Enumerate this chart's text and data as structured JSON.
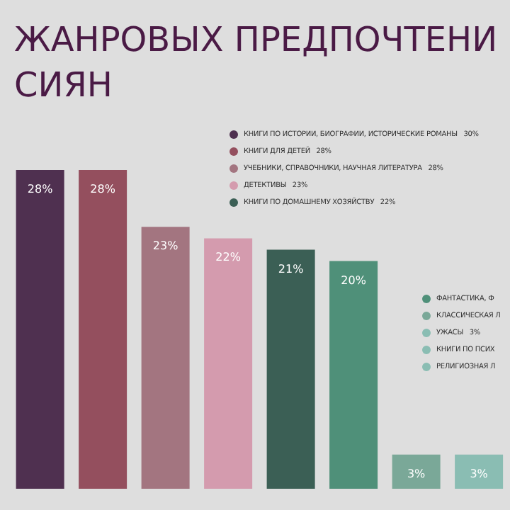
{
  "chart_data": {
    "type": "bar",
    "title": "ЖАНРОВЫХ ПРЕДПОЧТЕНИ\nСИЯН",
    "categories": [
      null,
      null,
      null,
      null,
      null,
      null,
      null,
      null
    ],
    "values": [
      28,
      28,
      23,
      22,
      21,
      20,
      3,
      3
    ],
    "value_labels": [
      "28%",
      "28%",
      "23%",
      "22%",
      "21%",
      "20%",
      "3%",
      "3%"
    ],
    "colors": [
      "#4f3050",
      "#944f5e",
      "#a37580",
      "#d49bae",
      "#3b5f55",
      "#4f9079",
      "#7aa898",
      "#8abdb3"
    ],
    "annotations": [
      "КНИГИ ПО ИСТОРИИ, БИОГРАФИИ, ИСТОРИЧЕСКИЕ РОМАНЫ   30%",
      "КНИГИ ДЛЯ ДЕТЕЙ   28%",
      "УЧЕБНИКИ, СПРАВОЧНИКИ, НАУЧНАЯ ЛИТЕРАТУРА   28%",
      "ДЕТЕКТИВЫ   23%",
      "КНИГИ ПО ДОМАШНЕМУ ХОЗЯЙСТВУ   22%",
      "ФАНТАСТИКА, Ф",
      "КЛАССИЧЕСКАЯ Л",
      "УЖАСЫ   3%",
      "КНИГИ ПО ПСИХ",
      "РЕЛИГИОЗНАЯ Л"
    ],
    "legend": false,
    "grid": false
  }
}
